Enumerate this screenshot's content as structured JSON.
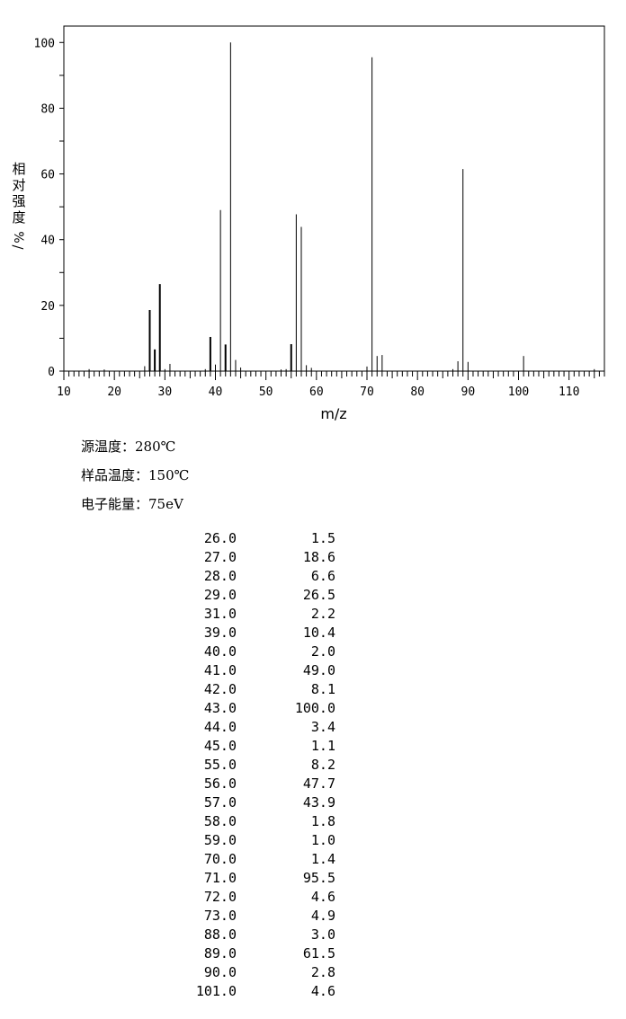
{
  "chart_data": {
    "type": "bar",
    "xlabel": "m/z",
    "ylabel": "相对强度%/",
    "xlim": [
      10,
      117
    ],
    "ylim": [
      0,
      105
    ],
    "xticks": [
      10,
      20,
      30,
      40,
      50,
      60,
      70,
      80,
      90,
      100,
      110
    ],
    "yticks": [
      0,
      20,
      40,
      60,
      80,
      100
    ],
    "peaks": [
      {
        "mz": 15,
        "abundance": 0.6
      },
      {
        "mz": 18,
        "abundance": 0.5
      },
      {
        "mz": 26,
        "abundance": 1.5
      },
      {
        "mz": 27,
        "abundance": 18.6
      },
      {
        "mz": 28,
        "abundance": 6.6
      },
      {
        "mz": 29,
        "abundance": 26.5
      },
      {
        "mz": 30,
        "abundance": 0.6
      },
      {
        "mz": 31,
        "abundance": 2.2
      },
      {
        "mz": 38,
        "abundance": 0.6
      },
      {
        "mz": 39,
        "abundance": 10.4
      },
      {
        "mz": 40,
        "abundance": 2.0
      },
      {
        "mz": 41,
        "abundance": 49.0
      },
      {
        "mz": 42,
        "abundance": 8.1
      },
      {
        "mz": 43,
        "abundance": 100.0
      },
      {
        "mz": 44,
        "abundance": 3.4
      },
      {
        "mz": 45,
        "abundance": 1.1
      },
      {
        "mz": 53,
        "abundance": 0.5
      },
      {
        "mz": 54,
        "abundance": 0.6
      },
      {
        "mz": 55,
        "abundance": 8.2
      },
      {
        "mz": 56,
        "abundance": 47.7
      },
      {
        "mz": 57,
        "abundance": 43.9
      },
      {
        "mz": 58,
        "abundance": 1.8
      },
      {
        "mz": 59,
        "abundance": 1.0
      },
      {
        "mz": 70,
        "abundance": 1.4
      },
      {
        "mz": 71,
        "abundance": 95.5
      },
      {
        "mz": 72,
        "abundance": 4.6
      },
      {
        "mz": 73,
        "abundance": 4.9
      },
      {
        "mz": 87,
        "abundance": 0.6
      },
      {
        "mz": 88,
        "abundance": 3.0
      },
      {
        "mz": 89,
        "abundance": 61.5
      },
      {
        "mz": 90,
        "abundance": 2.8
      },
      {
        "mz": 101,
        "abundance": 4.6
      },
      {
        "mz": 115,
        "abundance": 0.6
      }
    ]
  },
  "info": {
    "source_temp": "源温度：280℃",
    "sample_temp": "样品温度：150℃",
    "electron_energy": "电子能量：75eV"
  },
  "table": [
    [
      "26.0",
      "1.5"
    ],
    [
      "27.0",
      "18.6"
    ],
    [
      "28.0",
      "6.6"
    ],
    [
      "29.0",
      "26.5"
    ],
    [
      "31.0",
      "2.2"
    ],
    [
      "39.0",
      "10.4"
    ],
    [
      "40.0",
      "2.0"
    ],
    [
      "41.0",
      "49.0"
    ],
    [
      "42.0",
      "8.1"
    ],
    [
      "43.0",
      "100.0"
    ],
    [
      "44.0",
      "3.4"
    ],
    [
      "45.0",
      "1.1"
    ],
    [
      "55.0",
      "8.2"
    ],
    [
      "56.0",
      "47.7"
    ],
    [
      "57.0",
      "43.9"
    ],
    [
      "58.0",
      "1.8"
    ],
    [
      "59.0",
      "1.0"
    ],
    [
      "70.0",
      "1.4"
    ],
    [
      "71.0",
      "95.5"
    ],
    [
      "72.0",
      "4.6"
    ],
    [
      "73.0",
      "4.9"
    ],
    [
      "88.0",
      "3.0"
    ],
    [
      "89.0",
      "61.5"
    ],
    [
      "90.0",
      "2.8"
    ],
    [
      "101.0",
      "4.6"
    ]
  ]
}
